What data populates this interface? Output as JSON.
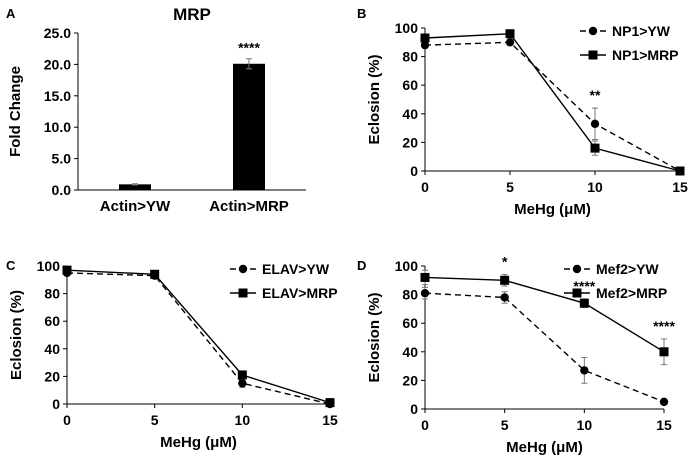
{
  "chart_data": [
    {
      "panel": "A",
      "type": "bar",
      "title": "MRP",
      "categories": [
        "Actin>YW",
        "Actin>MRP"
      ],
      "values": [
        0.9,
        20.1
      ],
      "errors": [
        0.1,
        0.8
      ],
      "significance": [
        "",
        "****"
      ],
      "ylabel": "Fold Change",
      "xlabel": "",
      "ylim": [
        0,
        25
      ],
      "yticks": [
        "0.0",
        "5.0",
        "10.0",
        "15.0",
        "20.0",
        "25.0"
      ]
    },
    {
      "panel": "B",
      "type": "line",
      "xlabel": "MeHg (μM)",
      "ylabel": "Eclosion (%)",
      "x": [
        0,
        5,
        10,
        15
      ],
      "xlim": [
        0,
        15
      ],
      "ylim": [
        0,
        100
      ],
      "xticks": [
        "0",
        "5",
        "10",
        "15"
      ],
      "yticks": [
        "0",
        "20",
        "40",
        "60",
        "80",
        "100"
      ],
      "legend_position": "top-right",
      "series": [
        {
          "name": "NP1>YW",
          "style": "dashed",
          "marker": "circle",
          "values": [
            88,
            90,
            33,
            0
          ],
          "errors": [
            2,
            2,
            11,
            0
          ]
        },
        {
          "name": "NP1>MRP",
          "style": "solid",
          "marker": "square",
          "values": [
            93,
            96,
            16,
            0
          ],
          "errors": [
            2,
            1,
            5,
            0
          ]
        }
      ],
      "significance": [
        {
          "x": 10,
          "label": "**"
        }
      ]
    },
    {
      "panel": "C",
      "type": "line",
      "xlabel": "MeHg (μM)",
      "ylabel": "Eclosion (%)",
      "x": [
        0,
        5,
        10,
        15
      ],
      "xlim": [
        0,
        15
      ],
      "ylim": [
        0,
        100
      ],
      "xticks": [
        "0",
        "5",
        "10",
        "15"
      ],
      "yticks": [
        "0",
        "20",
        "40",
        "60",
        "80",
        "100"
      ],
      "legend_position": "top-right",
      "series": [
        {
          "name": "ELAV>YW",
          "style": "dashed",
          "marker": "circle",
          "values": [
            95,
            93,
            15,
            0
          ],
          "errors": [
            1,
            1,
            3,
            0
          ]
        },
        {
          "name": "ELAV>MRP",
          "style": "solid",
          "marker": "square",
          "values": [
            97,
            94,
            21,
            1
          ],
          "errors": [
            1,
            1,
            3,
            0
          ]
        }
      ],
      "significance": []
    },
    {
      "panel": "D",
      "type": "line",
      "xlabel": "MeHg (μM)",
      "ylabel": "Eclosion (%)",
      "x": [
        0,
        5,
        10,
        15
      ],
      "xlim": [
        0,
        15
      ],
      "ylim": [
        0,
        100
      ],
      "xticks": [
        "0",
        "5",
        "10",
        "15"
      ],
      "yticks": [
        "0",
        "20",
        "40",
        "60",
        "80",
        "100"
      ],
      "legend_position": "top-right",
      "series": [
        {
          "name": "Mef2>YW",
          "style": "dashed",
          "marker": "circle",
          "values": [
            81,
            78,
            27,
            5
          ],
          "errors": [
            4,
            4,
            9,
            0
          ]
        },
        {
          "name": "Mef2>MRP",
          "style": "solid",
          "marker": "square",
          "values": [
            92,
            90,
            74,
            40
          ],
          "errors": [
            5,
            4,
            3,
            9
          ]
        }
      ],
      "significance": [
        {
          "x": 5,
          "label": "*"
        },
        {
          "x": 10,
          "label": "****"
        },
        {
          "x": 15,
          "label": "****"
        }
      ]
    }
  ]
}
